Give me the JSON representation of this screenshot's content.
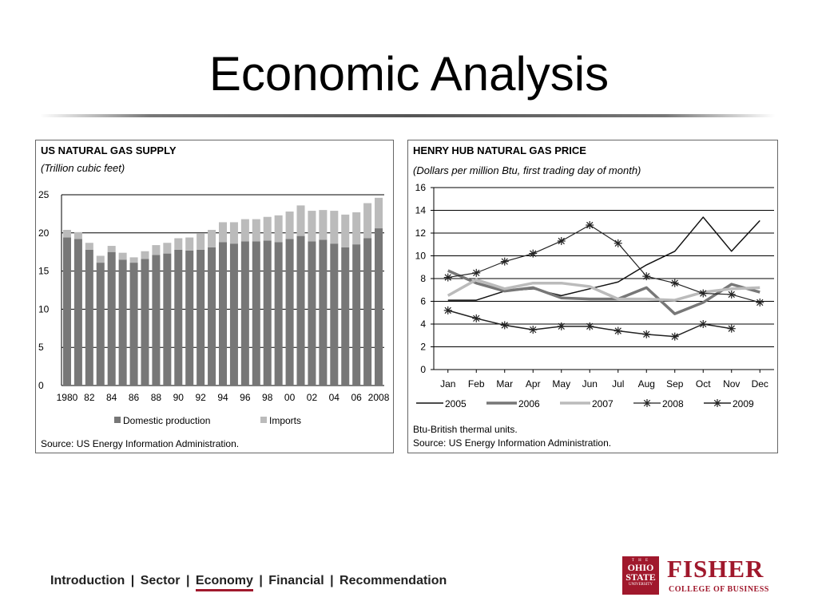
{
  "slide": {
    "title": "Economic Analysis"
  },
  "nav": {
    "items": [
      {
        "label": "Introduction",
        "active": false
      },
      {
        "label": "Sector",
        "active": false
      },
      {
        "label": "Economy",
        "active": true
      },
      {
        "label": "Financial",
        "active": false
      },
      {
        "label": "Recommendation",
        "active": false
      }
    ],
    "separator": "|"
  },
  "logo": {
    "seal_top": "T H E",
    "seal_line1": "OHIO",
    "seal_line2": "STATE",
    "seal_bottom": "UNIVERSITY",
    "name": "FISHER",
    "college": "COLLEGE OF BUSINESS",
    "color": "#a0182c"
  },
  "colors": {
    "domestic": "#777777",
    "imports": "#bbbbbb",
    "grid": "#000000"
  },
  "chart_data": [
    {
      "type": "bar",
      "stacked": true,
      "title": "US NATURAL GAS SUPPLY",
      "subtitle": "(Trillion cubic feet)",
      "note": "Source: US Energy Information Administration.",
      "x": [
        1980,
        1981,
        1982,
        1983,
        1984,
        1985,
        1986,
        1987,
        1988,
        1989,
        1990,
        1991,
        1992,
        1993,
        1994,
        1995,
        1996,
        1997,
        1998,
        1999,
        2000,
        2001,
        2002,
        2003,
        2004,
        2005,
        2006,
        2007,
        2008
      ],
      "xtick_labels": [
        "1980",
        "82",
        "84",
        "86",
        "88",
        "90",
        "92",
        "94",
        "96",
        "98",
        "00",
        "02",
        "04",
        "06",
        "2008"
      ],
      "ylim": [
        0,
        25
      ],
      "yticks": [
        0,
        5,
        10,
        15,
        20,
        25
      ],
      "grid": "horizontal",
      "legend_position": "bottom",
      "series": [
        {
          "name": "Domestic production",
          "values": [
            19.4,
            19.2,
            17.8,
            16.1,
            17.5,
            16.5,
            16.1,
            16.6,
            17.1,
            17.3,
            17.8,
            17.7,
            17.8,
            18.1,
            18.8,
            18.6,
            18.9,
            18.9,
            19.0,
            18.8,
            19.2,
            19.6,
            18.9,
            19.1,
            18.6,
            18.1,
            18.5,
            19.3,
            20.6
          ]
        },
        {
          "name": "Imports",
          "values": [
            1.0,
            0.9,
            0.9,
            0.9,
            0.8,
            0.9,
            0.7,
            1.0,
            1.3,
            1.4,
            1.5,
            1.7,
            2.1,
            2.3,
            2.6,
            2.8,
            2.9,
            2.9,
            3.1,
            3.5,
            3.6,
            4.0,
            4.0,
            3.9,
            4.3,
            4.3,
            4.2,
            4.6,
            4.0
          ]
        }
      ]
    },
    {
      "type": "line",
      "title": "HENRY HUB NATURAL GAS PRICE",
      "subtitle": "(Dollars per million Btu, first trading day of month)",
      "note": "Btu-British thermal units.",
      "note2": "Source: US Energy Information Administration.",
      "categories": [
        "Jan",
        "Feb",
        "Mar",
        "Apr",
        "May",
        "Jun",
        "Jul",
        "Aug",
        "Sep",
        "Oct",
        "Nov",
        "Dec"
      ],
      "ylim": [
        0,
        16
      ],
      "yticks": [
        0,
        2,
        4,
        6,
        8,
        10,
        12,
        14,
        16
      ],
      "grid": "horizontal",
      "legend_position": "bottom",
      "series": [
        {
          "name": "2005",
          "color": "#111111",
          "width": 1.5,
          "marker": "none",
          "values": [
            6.1,
            6.1,
            6.9,
            7.1,
            6.5,
            7.1,
            7.7,
            9.2,
            10.4,
            13.4,
            10.4,
            13.1
          ]
        },
        {
          "name": "2006",
          "color": "#777777",
          "width": 3.5,
          "marker": "none",
          "values": [
            8.7,
            7.6,
            6.9,
            7.2,
            6.3,
            6.2,
            6.2,
            7.2,
            4.9,
            5.9,
            7.5,
            6.8
          ]
        },
        {
          "name": "2007",
          "color": "#bbbbbb",
          "width": 3.5,
          "marker": "none",
          "values": [
            6.5,
            7.9,
            7.1,
            7.6,
            7.6,
            7.3,
            6.2,
            6.2,
            6.1,
            6.8,
            7.1,
            7.2
          ]
        },
        {
          "name": "2008",
          "color": "#222222",
          "width": 1.2,
          "marker": "star",
          "values": [
            8.1,
            8.5,
            9.5,
            10.2,
            11.3,
            12.7,
            11.1,
            8.2,
            7.6,
            6.7,
            6.6,
            5.9
          ]
        },
        {
          "name": "2009",
          "color": "#222222",
          "width": 1.5,
          "marker": "star",
          "values": [
            5.2,
            4.5,
            3.9,
            3.5,
            3.8,
            3.8,
            3.4,
            3.1,
            2.9,
            4.0,
            3.6,
            null
          ]
        }
      ]
    }
  ]
}
